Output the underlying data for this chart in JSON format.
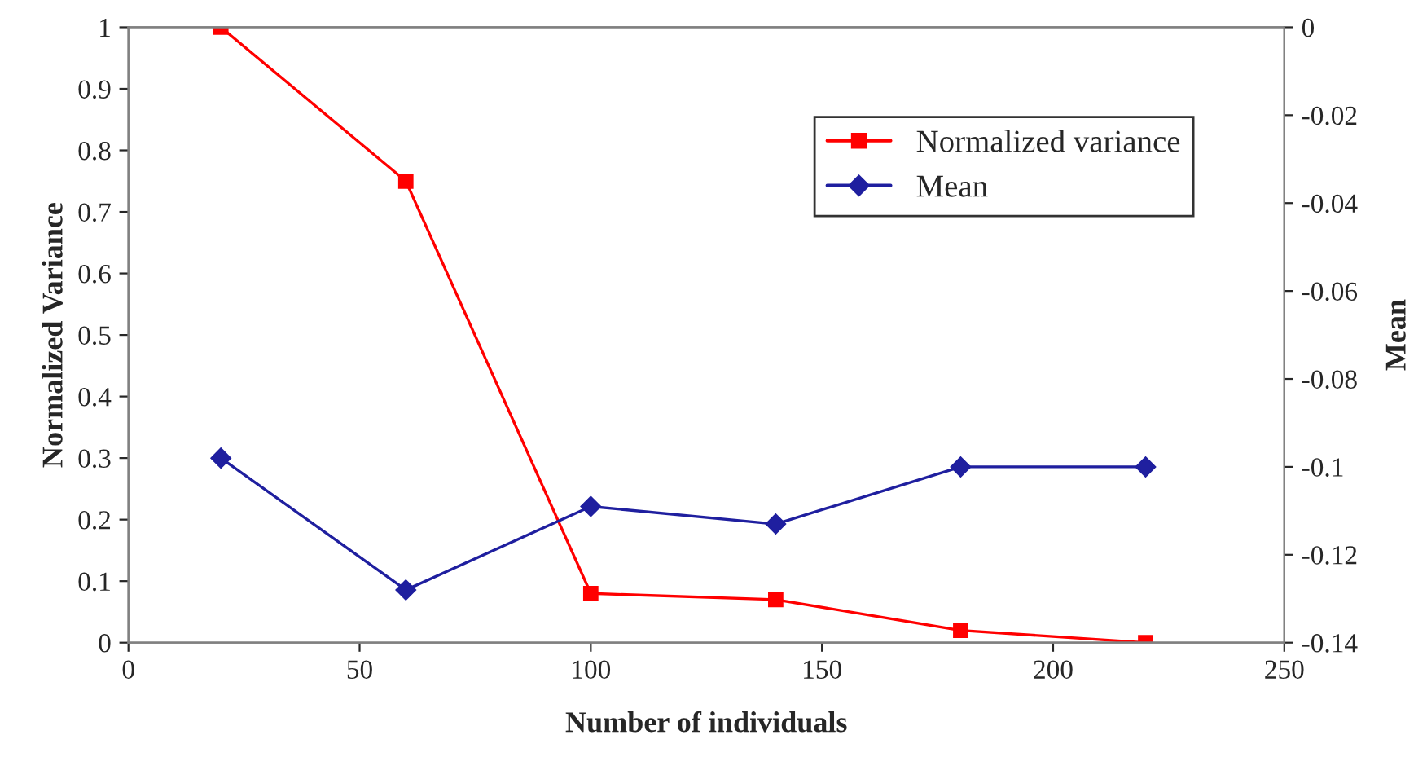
{
  "chart_data": {
    "type": "line",
    "xlabel": "Number of individuals",
    "ylabel": "Normalized Variance",
    "y2label": "Mean",
    "x": [
      20,
      60,
      100,
      140,
      180,
      220
    ],
    "series": [
      {
        "name": "Normalized variance",
        "color": "#ff0000",
        "marker": "square",
        "values": [
          1.0,
          0.75,
          0.08,
          0.07,
          0.02,
          0.0
        ]
      },
      {
        "name": "Mean",
        "color": "#1f1f9f",
        "marker": "diamond",
        "axis": "y2",
        "values": [
          -0.098,
          -0.128,
          -0.109,
          -0.113,
          -0.1,
          -0.1
        ]
      }
    ],
    "xlim": [
      0,
      250
    ],
    "xticks": [
      0,
      50,
      100,
      150,
      200,
      250
    ],
    "ylim": [
      0,
      1
    ],
    "yticks": [
      0,
      0.1,
      0.2,
      0.3,
      0.4,
      0.5,
      0.6,
      0.7,
      0.8,
      0.9,
      1
    ],
    "y2lim": [
      -0.14,
      0
    ],
    "y2ticks": [
      -0.14,
      -0.12,
      -0.1,
      -0.08,
      -0.06,
      -0.04,
      -0.02,
      0
    ],
    "grid": false,
    "legend": "top right"
  }
}
